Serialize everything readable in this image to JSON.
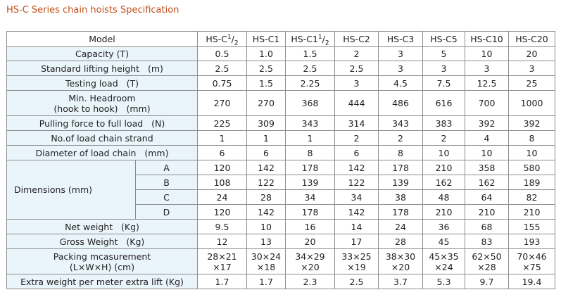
{
  "title": "HS-C Series chain hoists Specification",
  "header": {
    "model_label": "Model",
    "models": [
      {
        "base": "HS-C",
        "sup": "1",
        "sep": "/",
        "sub": "2"
      },
      {
        "base": "HS-C1",
        "sup": "",
        "sep": "",
        "sub": ""
      },
      {
        "base": "HS-C1",
        "sup": "1",
        "sep": "/",
        "sub": "2"
      },
      {
        "base": "HS-C2",
        "sup": "",
        "sep": "",
        "sub": ""
      },
      {
        "base": "HS-C3",
        "sup": "",
        "sep": "",
        "sub": ""
      },
      {
        "base": "HS-C5",
        "sup": "",
        "sep": "",
        "sub": ""
      },
      {
        "base": "HS-C10",
        "sup": "",
        "sep": "",
        "sub": ""
      },
      {
        "base": "HS-C20",
        "sup": "",
        "sep": "",
        "sub": ""
      }
    ]
  },
  "rows": {
    "capacity": {
      "label": "Capacity (T)",
      "values": [
        "0.5",
        "1.0",
        "1.5",
        "2",
        "3",
        "5",
        "10",
        "20"
      ]
    },
    "lift_height": {
      "label": "Standard lifting height   (m)",
      "values": [
        "2.5",
        "2.5",
        "2.5",
        "2.5",
        "3",
        "3",
        "3",
        "3"
      ]
    },
    "testing_load": {
      "label": "Testing load   (T)",
      "values": [
        "0.75",
        "1.5",
        "2.25",
        "3",
        "4.5",
        "7.5",
        "12.5",
        "25"
      ]
    },
    "headroom": {
      "label1": "Min. Headroom",
      "label2": "(hook to hook)   (mm)",
      "values": [
        "270",
        "270",
        "368",
        "444",
        "486",
        "616",
        "700",
        "1000"
      ]
    },
    "pulling_force": {
      "label": "Pulling force to full load   (N)",
      "values": [
        "225",
        "309",
        "343",
        "314",
        "343",
        "383",
        "392",
        "392"
      ]
    },
    "chain_strand": {
      "label": "No.of load chain strand",
      "values": [
        "1",
        "1",
        "1",
        "2",
        "2",
        "2",
        "4",
        "8"
      ]
    },
    "chain_diameter": {
      "label": "Diameter of load chain   (mm)",
      "values": [
        "6",
        "6",
        "8",
        "6",
        "8",
        "10",
        "10",
        "10"
      ]
    },
    "dimensions": {
      "label": "Dimensions (mm)",
      "sub": [
        {
          "key": "A",
          "values": [
            "120",
            "142",
            "178",
            "142",
            "178",
            "210",
            "358",
            "580"
          ]
        },
        {
          "key": "B",
          "values": [
            "108",
            "122",
            "139",
            "122",
            "139",
            "162",
            "162",
            "189"
          ]
        },
        {
          "key": "C",
          "values": [
            "24",
            "28",
            "34",
            "34",
            "38",
            "48",
            "64",
            "82"
          ]
        },
        {
          "key": "D",
          "values": [
            "120",
            "142",
            "178",
            "142",
            "178",
            "210",
            "210",
            "210"
          ]
        }
      ]
    },
    "net_weight": {
      "label": "Net weight   (Kg)",
      "values": [
        "9.5",
        "10",
        "16",
        "14",
        "24",
        "36",
        "68",
        "155"
      ]
    },
    "gross_weight": {
      "label": "Gross Weight   (Kg)",
      "values": [
        "12",
        "13",
        "20",
        "17",
        "28",
        "45",
        "83",
        "193"
      ]
    },
    "packing": {
      "label1": "Packing mcasurement",
      "label2": "(L×W×H) (cm)",
      "line1": [
        "28×21",
        "30×24",
        "34×29",
        "33×25",
        "38×30",
        "45×35",
        "62×50",
        "70×46"
      ],
      "line2": [
        "×17",
        "×18",
        "×20",
        "×19",
        "×20",
        "×24",
        "×28",
        "×75"
      ]
    },
    "extra_weight": {
      "label": "Extra weight per meter extra lift (Kg)",
      "values": [
        "1.7",
        "1.7",
        "2.3",
        "2.5",
        "3.7",
        "5.3",
        "9.7",
        "19.4"
      ]
    }
  }
}
